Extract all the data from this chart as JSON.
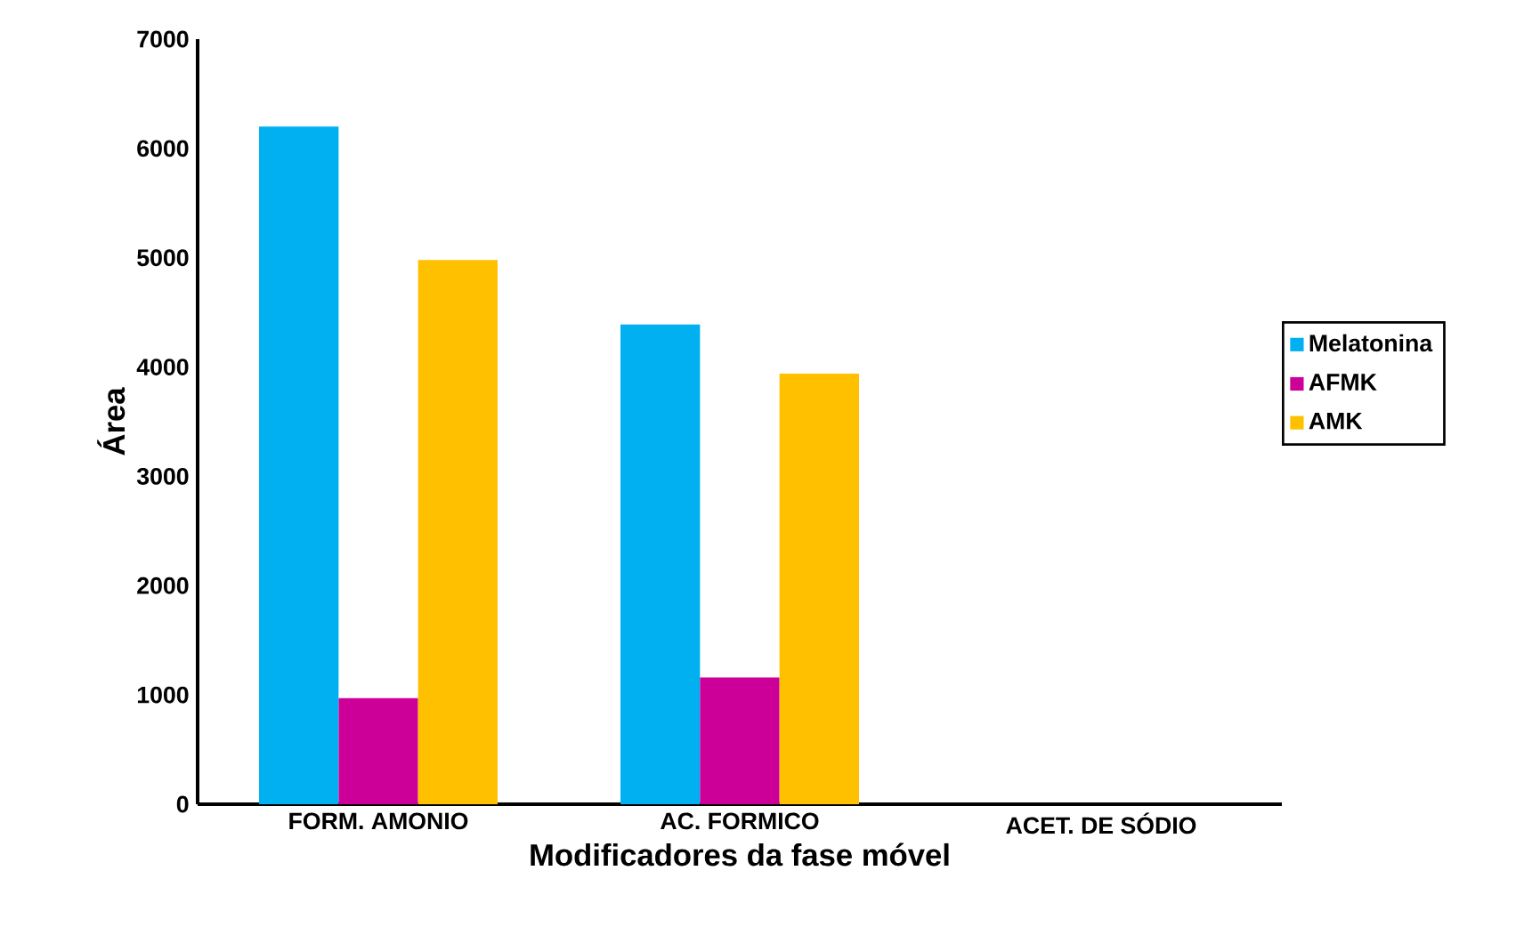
{
  "chart_data": {
    "type": "bar",
    "xlabel": "Modificadores da fase móvel",
    "ylabel": "Área",
    "categories": [
      "FORM. AMONIO",
      "AC. FORMICO",
      "ACET. DE SÓDIO"
    ],
    "series": [
      {
        "name": "Melatonina",
        "color": "#00b0f0",
        "values": [
          6200,
          4390,
          0
        ]
      },
      {
        "name": "AFMK",
        "color": "#cc0099",
        "values": [
          970,
          1160,
          0
        ]
      },
      {
        "name": "AMK",
        "color": "#ffc000",
        "values": [
          4980,
          3940,
          0
        ]
      }
    ],
    "ylim": [
      0,
      7000
    ],
    "yticks": [
      0,
      1000,
      2000,
      3000,
      4000,
      5000,
      6000,
      7000
    ],
    "grid": false,
    "legend": "right"
  }
}
